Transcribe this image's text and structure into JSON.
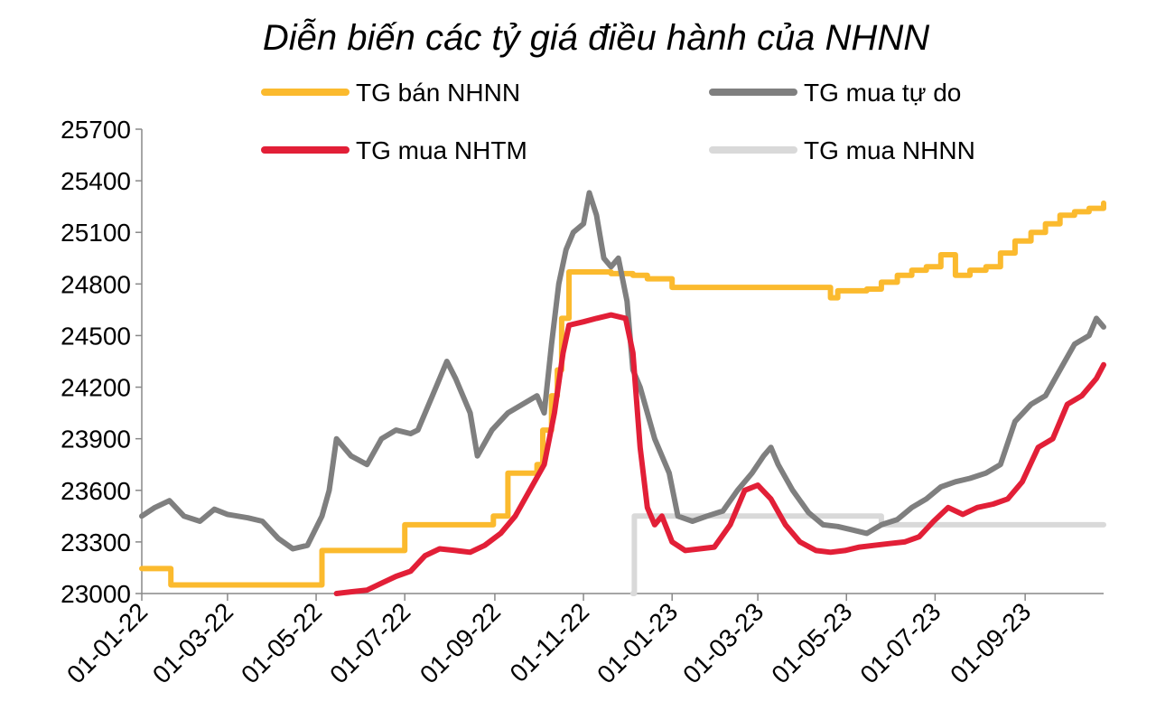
{
  "chart_data": {
    "type": "line",
    "title": "Diễn biến các tỷ giá điều hành của NHNN",
    "xlabel": "",
    "ylabel": "",
    "ylim": [
      23000,
      25700
    ],
    "yticks": [
      "25700",
      "25400",
      "25100",
      "24800",
      "24500",
      "24200",
      "23900",
      "23600",
      "23300",
      "23000"
    ],
    "xlim": [
      "2022-01-01",
      "2023-10-25"
    ],
    "xticks": [
      "01-01-22",
      "01-03-22",
      "01-05-22",
      "01-07-22",
      "01-09-22",
      "01-11-22",
      "01-01-23",
      "01-03-23",
      "01-05-23",
      "01-07-23",
      "01-09-23"
    ],
    "grid": false,
    "legend_position": "top",
    "series": [
      {
        "name": "TG bán NHNN",
        "color": "#FBBA2E",
        "interpolation": "step",
        "x": [
          "2022-01-01",
          "2022-01-21",
          "2022-05-05",
          "2022-07-01",
          "2022-08-31",
          "2022-09-10",
          "2022-09-30",
          "2022-10-04",
          "2022-10-10",
          "2022-10-14",
          "2022-10-17",
          "2022-10-22",
          "2022-11-20",
          "2022-12-05",
          "2022-12-15",
          "2023-01-01",
          "2023-04-10",
          "2023-04-20",
          "2023-04-25",
          "2023-05-05",
          "2023-05-15",
          "2023-05-25",
          "2023-06-05",
          "2023-06-15",
          "2023-06-25",
          "2023-07-05",
          "2023-07-15",
          "2023-07-25",
          "2023-08-05",
          "2023-08-15",
          "2023-08-25",
          "2023-09-05",
          "2023-09-15",
          "2023-09-25",
          "2023-10-05",
          "2023-10-15",
          "2023-10-25"
        ],
        "y": [
          23145,
          23050,
          23250,
          23400,
          23450,
          23700,
          23750,
          23950,
          24150,
          24300,
          24600,
          24870,
          24860,
          24850,
          24830,
          24780,
          24780,
          24720,
          24760,
          24760,
          24770,
          24810,
          24850,
          24880,
          24900,
          24970,
          24850,
          24880,
          24900,
          24980,
          25050,
          25100,
          25150,
          25200,
          25220,
          25240,
          25270
        ]
      },
      {
        "name": "TG mua tự do",
        "color": "#7F7F7F",
        "interpolation": "linear",
        "x": [
          "2022-01-01",
          "2022-01-10",
          "2022-01-20",
          "2022-01-30",
          "2022-02-10",
          "2022-02-20",
          "2022-03-01",
          "2022-03-15",
          "2022-03-25",
          "2022-04-05",
          "2022-04-15",
          "2022-04-25",
          "2022-05-05",
          "2022-05-10",
          "2022-05-15",
          "2022-05-25",
          "2022-06-05",
          "2022-06-15",
          "2022-06-25",
          "2022-07-05",
          "2022-07-10",
          "2022-07-20",
          "2022-07-30",
          "2022-08-05",
          "2022-08-15",
          "2022-08-20",
          "2022-08-30",
          "2022-09-10",
          "2022-09-20",
          "2022-09-30",
          "2022-10-05",
          "2022-10-10",
          "2022-10-15",
          "2022-10-20",
          "2022-10-25",
          "2022-11-01",
          "2022-11-05",
          "2022-11-10",
          "2022-11-15",
          "2022-11-20",
          "2022-11-25",
          "2022-12-01",
          "2022-12-05",
          "2022-12-10",
          "2022-12-20",
          "2022-12-30",
          "2023-01-05",
          "2023-01-15",
          "2023-01-25",
          "2023-02-05",
          "2023-02-15",
          "2023-02-25",
          "2023-03-05",
          "2023-03-10",
          "2023-03-15",
          "2023-03-25",
          "2023-04-05",
          "2023-04-15",
          "2023-04-25",
          "2023-05-05",
          "2023-05-15",
          "2023-05-25",
          "2023-06-05",
          "2023-06-15",
          "2023-06-25",
          "2023-07-05",
          "2023-07-15",
          "2023-07-25",
          "2023-08-05",
          "2023-08-15",
          "2023-08-25",
          "2023-09-05",
          "2023-09-15",
          "2023-09-25",
          "2023-10-05",
          "2023-10-15",
          "2023-10-20",
          "2023-10-25"
        ],
        "y": [
          23450,
          23500,
          23540,
          23450,
          23420,
          23490,
          23460,
          23440,
          23420,
          23320,
          23260,
          23280,
          23450,
          23600,
          23900,
          23800,
          23750,
          23900,
          23950,
          23930,
          23950,
          24150,
          24350,
          24250,
          24050,
          23800,
          23950,
          24050,
          24100,
          24150,
          24050,
          24450,
          24800,
          25000,
          25100,
          25150,
          25330,
          25200,
          24950,
          24900,
          24950,
          24700,
          24300,
          24200,
          23900,
          23700,
          23450,
          23420,
          23450,
          23480,
          23600,
          23700,
          23800,
          23850,
          23750,
          23600,
          23470,
          23400,
          23390,
          23370,
          23350,
          23400,
          23430,
          23500,
          23550,
          23620,
          23650,
          23670,
          23700,
          23750,
          24000,
          24100,
          24150,
          24300,
          24450,
          24500,
          24600,
          24550
        ]
      },
      {
        "name": "TG mua NHTM",
        "color": "#E21F37",
        "interpolation": "linear",
        "x": [
          "2022-05-15",
          "2022-05-25",
          "2022-06-05",
          "2022-06-15",
          "2022-06-25",
          "2022-07-05",
          "2022-07-15",
          "2022-07-25",
          "2022-08-05",
          "2022-08-15",
          "2022-08-25",
          "2022-09-05",
          "2022-09-15",
          "2022-09-25",
          "2022-10-05",
          "2022-10-12",
          "2022-10-18",
          "2022-10-22",
          "2022-11-01",
          "2022-11-10",
          "2022-11-20",
          "2022-11-30",
          "2022-12-05",
          "2022-12-10",
          "2022-12-15",
          "2022-12-20",
          "2022-12-25",
          "2023-01-01",
          "2023-01-10",
          "2023-01-20",
          "2023-01-30",
          "2023-02-10",
          "2023-02-20",
          "2023-03-01",
          "2023-03-10",
          "2023-03-20",
          "2023-03-30",
          "2023-04-10",
          "2023-04-20",
          "2023-04-30",
          "2023-05-10",
          "2023-05-20",
          "2023-05-30",
          "2023-06-10",
          "2023-06-20",
          "2023-06-30",
          "2023-07-10",
          "2023-07-20",
          "2023-07-30",
          "2023-08-10",
          "2023-08-20",
          "2023-08-30",
          "2023-09-10",
          "2023-09-20",
          "2023-09-30",
          "2023-10-10",
          "2023-10-20",
          "2023-10-25"
        ],
        "y": [
          23000,
          23010,
          23020,
          23060,
          23100,
          23130,
          23220,
          23260,
          23250,
          23240,
          23280,
          23350,
          23450,
          23600,
          23750,
          24050,
          24400,
          24560,
          24580,
          24600,
          24620,
          24600,
          24400,
          23850,
          23500,
          23400,
          23450,
          23300,
          23250,
          23260,
          23270,
          23400,
          23600,
          23630,
          23550,
          23400,
          23300,
          23250,
          23240,
          23250,
          23270,
          23280,
          23290,
          23300,
          23330,
          23420,
          23500,
          23460,
          23500,
          23520,
          23550,
          23650,
          23850,
          23900,
          24100,
          24150,
          24250,
          24330
        ]
      },
      {
        "name": "TG mua NHNN",
        "color": "#D9D9D9",
        "interpolation": "step",
        "x": [
          "2022-12-05",
          "2022-12-06",
          "2023-05-25",
          "2023-10-25"
        ],
        "y": [
          23000,
          23450,
          23400,
          23400
        ]
      }
    ]
  }
}
